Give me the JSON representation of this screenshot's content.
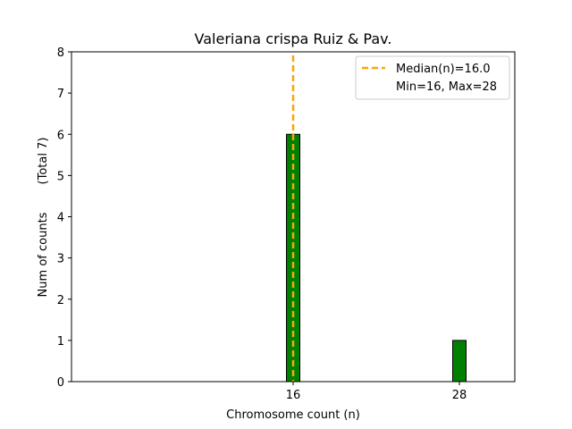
{
  "chart_data": {
    "type": "bar",
    "title": "Valeriana crispa Ruiz & Pav.",
    "xlabel": "Chromosome count (n)",
    "ylabel": "Num of counts",
    "ylabel_extra": "(Total 7)",
    "x_ticks": [
      16,
      28
    ],
    "y_ticks": [
      0,
      1,
      2,
      3,
      4,
      5,
      6,
      7,
      8
    ],
    "xlim": [
      0,
      32
    ],
    "ylim": [
      0,
      8
    ],
    "bars": [
      {
        "x": 16,
        "value": 6
      },
      {
        "x": 28,
        "value": 1
      }
    ],
    "bar_color": "#008000",
    "bar_edge_color": "#000000",
    "median": {
      "value": 16.0,
      "color": "#FFA500"
    },
    "legend": {
      "position": "top-right",
      "entries": [
        "Median(n)=16.0",
        "Min=16, Max=28"
      ]
    },
    "grid": false
  }
}
